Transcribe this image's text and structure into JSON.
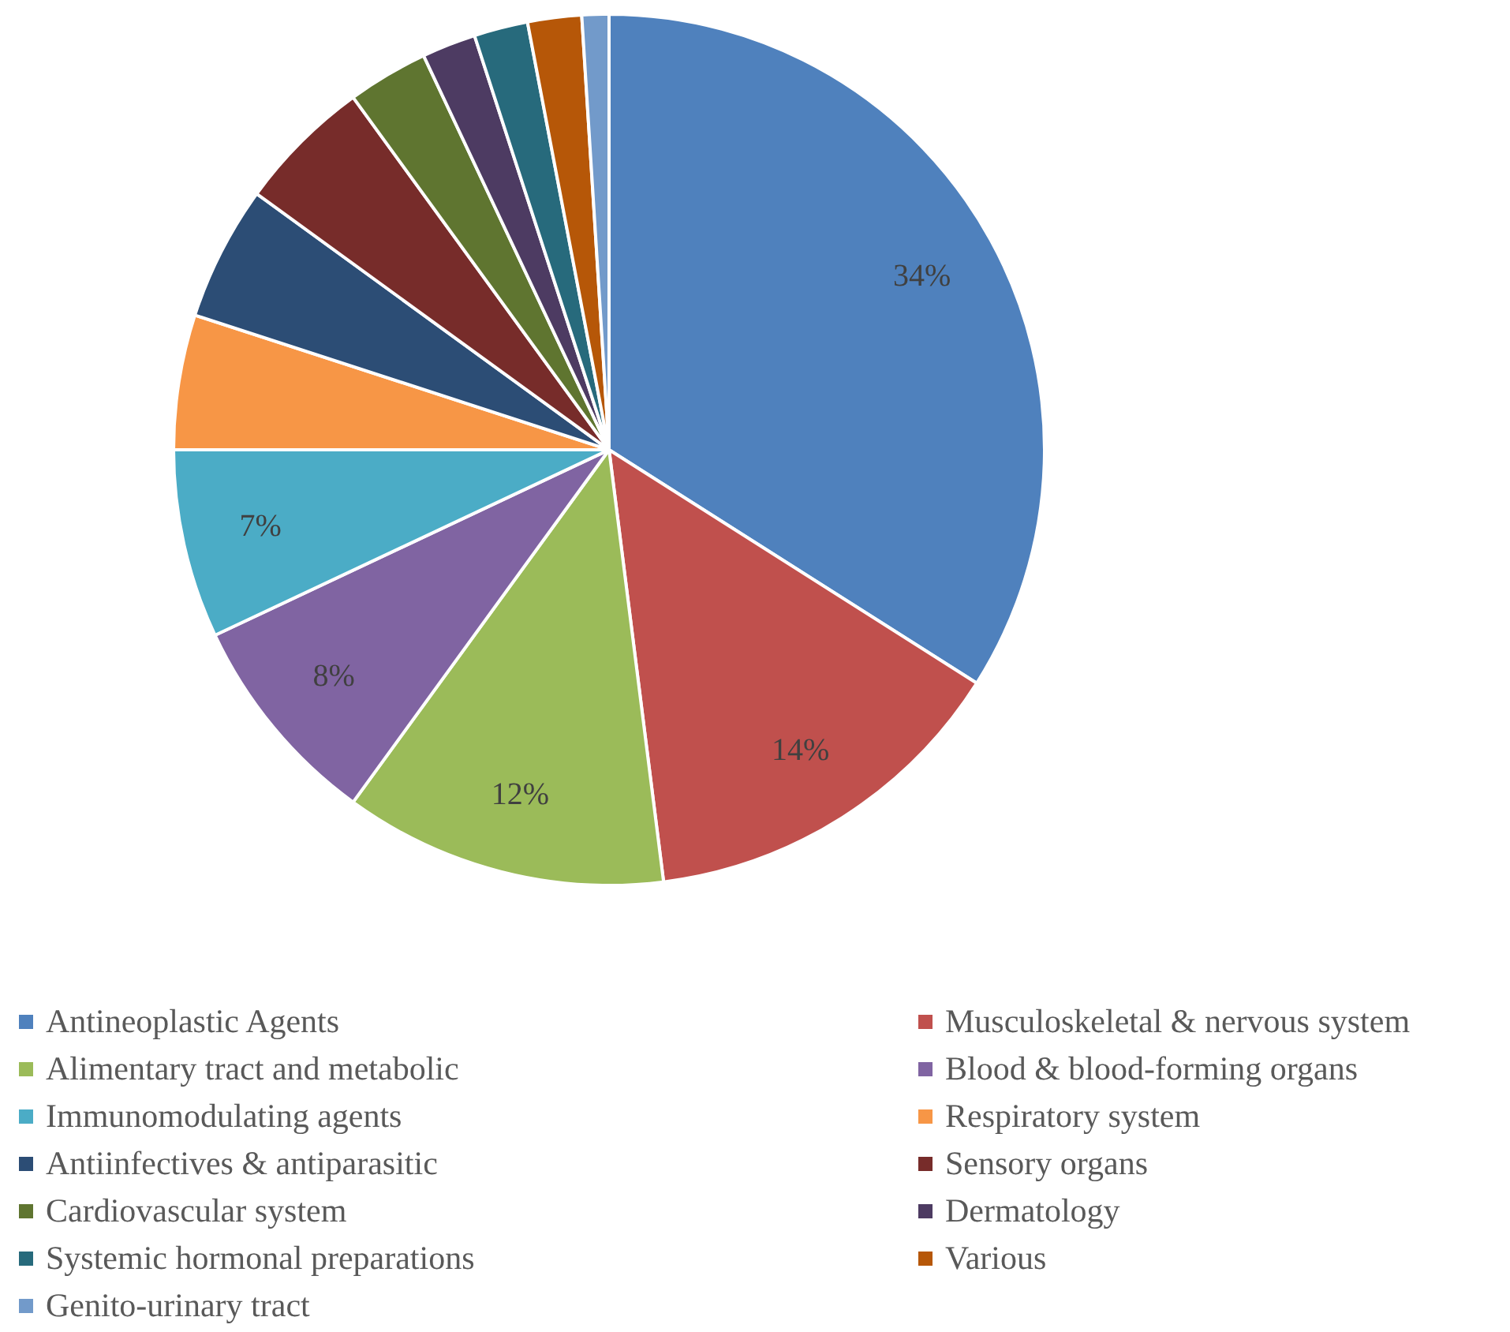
{
  "chart_data": {
    "type": "pie",
    "categories": [
      "Antineoplastic Agents",
      "Musculoskeletal & nervous system",
      "Alimentary tract and metabolic",
      "Blood & blood-forming organs",
      "Immunomodulating agents",
      "Respiratory system",
      "Antiinfectives & antiparasitic",
      "Sensory organs",
      "Cardiovascular system",
      "Dermatology",
      "Systemic hormonal preparations",
      "Various",
      "Genito-urinary tract"
    ],
    "values": [
      34,
      14,
      12,
      8,
      7,
      5,
      5,
      5,
      3,
      2,
      2,
      2,
      1
    ],
    "value_labels": [
      "34%",
      "14%",
      "12%",
      "8%",
      "7%",
      null,
      null,
      null,
      null,
      null,
      null,
      null,
      null
    ],
    "colors": [
      "#4f81bd",
      "#c0504d",
      "#9bbb59",
      "#8064a2",
      "#4bacc6",
      "#f79646",
      "#2c4d75",
      "#772c2a",
      "#5f7530",
      "#4d3b62",
      "#276a7c",
      "#b65708",
      "#729aca"
    ],
    "legend": "bottom"
  }
}
